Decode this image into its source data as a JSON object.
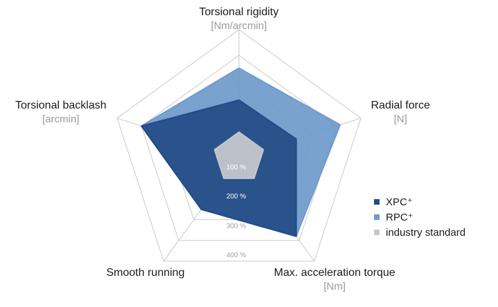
{
  "chart_data": {
    "type": "radar",
    "axes": [
      {
        "label": "Torsional rigidity",
        "unit": "[Nm/arcmin]"
      },
      {
        "label": "Radial force",
        "unit": "[N]"
      },
      {
        "label": "Max. acceleration torque",
        "unit": "[Nm]"
      },
      {
        "label": "Smooth running",
        "unit": ""
      },
      {
        "label": "Torsional backlash",
        "unit": "[arcmin]"
      }
    ],
    "rings": [
      100,
      200,
      300,
      400,
      500
    ],
    "ring_labels": [
      "100 %",
      "200 %",
      "300 %",
      "400 %"
    ],
    "rlim": [
      0,
      500
    ],
    "series": [
      {
        "name": "RPC⁺",
        "color": "#6f9acb",
        "values": [
          350,
          415,
          380,
          250,
          400
        ]
      },
      {
        "name": "XPC⁺",
        "color": "#234b86",
        "values": [
          225,
          235,
          380,
          250,
          400
        ]
      },
      {
        "name": "industry standard",
        "color": "#c4c7cc",
        "values": [
          100,
          100,
          100,
          100,
          100
        ]
      }
    ],
    "legend_position": "right"
  }
}
